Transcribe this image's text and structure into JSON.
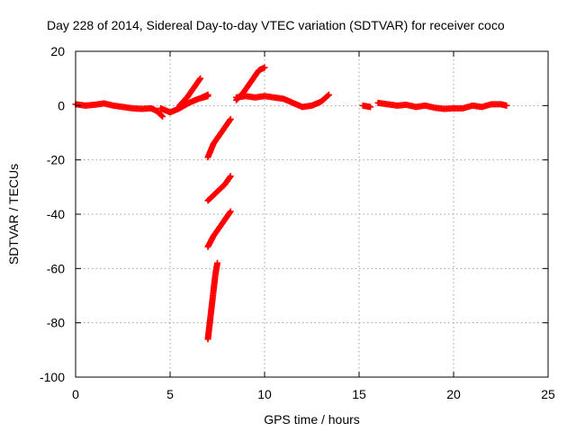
{
  "chart_data": {
    "type": "scatter",
    "title": "Day 228 of 2014, Sidereal Day-to-day VTEC variation (SDTVAR) for receiver coco",
    "xlabel": "GPS time / hours",
    "ylabel": "SDTVAR / TECUs",
    "xlim": [
      0,
      25
    ],
    "ylim": [
      -100,
      20
    ],
    "xticks": [
      0,
      5,
      10,
      15,
      20,
      25
    ],
    "yticks": [
      -100,
      -80,
      -60,
      -40,
      -20,
      0,
      20
    ],
    "grid": true,
    "marker": "plus",
    "colors": {
      "series": "#ff0000",
      "axis": "#000000",
      "grid": "#a0a0a0"
    },
    "series": [
      {
        "segments": [
          [
            [
              0.0,
              0.5
            ],
            [
              0.5,
              0.0
            ],
            [
              1.0,
              0.3
            ],
            [
              1.5,
              0.8
            ],
            [
              2.0,
              0.0
            ],
            [
              2.5,
              -0.5
            ],
            [
              3.0,
              -1.0
            ],
            [
              3.5,
              -1.2
            ],
            [
              4.0,
              -1.0
            ],
            [
              4.3,
              -2.0
            ],
            [
              4.6,
              -4.0
            ]
          ],
          [
            [
              4.5,
              -1.0
            ],
            [
              5.0,
              -2.5
            ],
            [
              5.5,
              -1.0
            ],
            [
              6.0,
              1.0
            ],
            [
              6.5,
              2.5
            ],
            [
              7.0,
              3.5
            ]
          ],
          [
            [
              5.5,
              0.0
            ],
            [
              5.9,
              3.0
            ],
            [
              6.3,
              7.0
            ],
            [
              6.6,
              10.0
            ]
          ],
          [
            [
              6.7,
              3.0
            ],
            [
              7.0,
              4.0
            ]
          ],
          [
            [
              7.0,
              -19.0
            ],
            [
              7.3,
              -14.0
            ],
            [
              7.6,
              -11.0
            ],
            [
              7.9,
              -8.0
            ],
            [
              8.2,
              -5.0
            ]
          ],
          [
            [
              7.0,
              -35.0
            ],
            [
              7.3,
              -33.0
            ],
            [
              7.6,
              -31.0
            ],
            [
              7.9,
              -29.0
            ],
            [
              8.2,
              -26.0
            ]
          ],
          [
            [
              7.0,
              -52.0
            ],
            [
              7.3,
              -48.0
            ],
            [
              7.6,
              -45.0
            ],
            [
              7.9,
              -42.0
            ],
            [
              8.2,
              -39.0
            ]
          ],
          [
            [
              7.0,
              -86.0
            ],
            [
              7.1,
              -80.0
            ],
            [
              7.2,
              -74.0
            ],
            [
              7.3,
              -68.0
            ],
            [
              7.4,
              -62.0
            ],
            [
              7.5,
              -58.0
            ]
          ],
          [
            [
              8.5,
              2.0
            ],
            [
              8.9,
              5.0
            ],
            [
              9.3,
              9.0
            ],
            [
              9.7,
              13.0
            ],
            [
              10.0,
              14.0
            ]
          ],
          [
            [
              8.5,
              3.0
            ],
            [
              9.0,
              3.5
            ],
            [
              9.5,
              3.0
            ],
            [
              10.0,
              3.5
            ],
            [
              10.5,
              3.0
            ],
            [
              11.0,
              2.5
            ],
            [
              11.5,
              1.0
            ],
            [
              12.0,
              -0.5
            ],
            [
              12.5,
              0.0
            ],
            [
              13.0,
              1.5
            ],
            [
              13.4,
              4.0
            ]
          ],
          [
            [
              15.2,
              0.0
            ],
            [
              15.6,
              -0.5
            ]
          ],
          [
            [
              16.0,
              1.0
            ],
            [
              16.5,
              0.5
            ],
            [
              17.0,
              0.0
            ],
            [
              17.5,
              0.3
            ],
            [
              18.0,
              -0.5
            ],
            [
              18.5,
              0.0
            ],
            [
              19.0,
              -0.8
            ],
            [
              19.5,
              -1.2
            ],
            [
              20.0,
              -1.0
            ],
            [
              20.5,
              -1.0
            ],
            [
              21.0,
              0.0
            ],
            [
              21.5,
              -0.5
            ],
            [
              22.0,
              0.5
            ],
            [
              22.5,
              0.5
            ],
            [
              22.8,
              0.0
            ]
          ]
        ]
      }
    ]
  }
}
